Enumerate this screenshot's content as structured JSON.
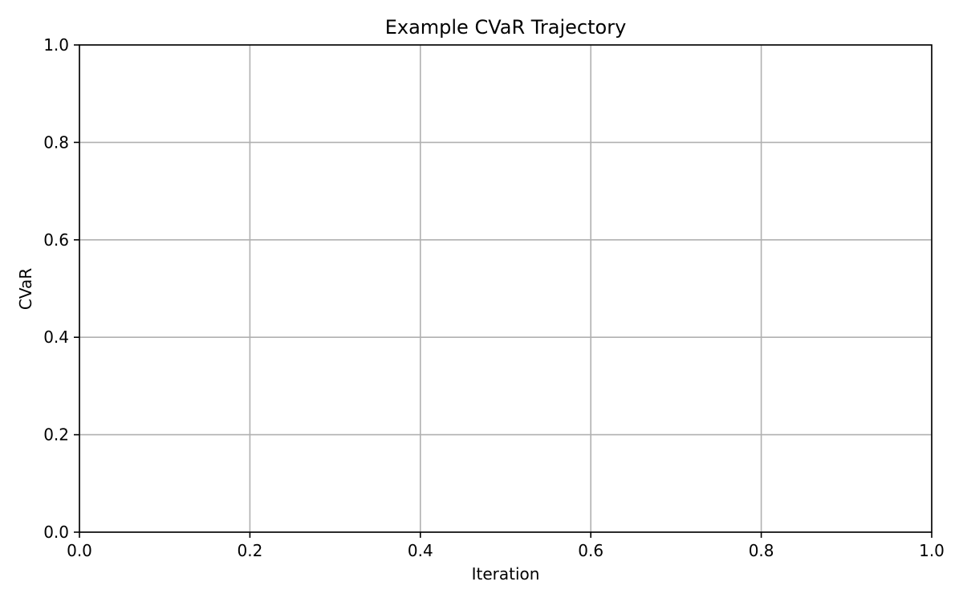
{
  "chart_data": {
    "type": "line",
    "title": "Example CVaR Trajectory",
    "xlabel": "Iteration",
    "ylabel": "CVaR",
    "xlim": [
      0.0,
      1.0
    ],
    "ylim": [
      0.0,
      1.0
    ],
    "x_ticks": [
      "0.0",
      "0.2",
      "0.4",
      "0.6",
      "0.8",
      "1.0"
    ],
    "y_ticks": [
      "0.0",
      "0.2",
      "0.4",
      "0.6",
      "0.8",
      "1.0"
    ],
    "grid": true,
    "series": [],
    "colors": {
      "grid": "#b0b0b0",
      "axis": "#000000",
      "background": "#ffffff"
    }
  }
}
